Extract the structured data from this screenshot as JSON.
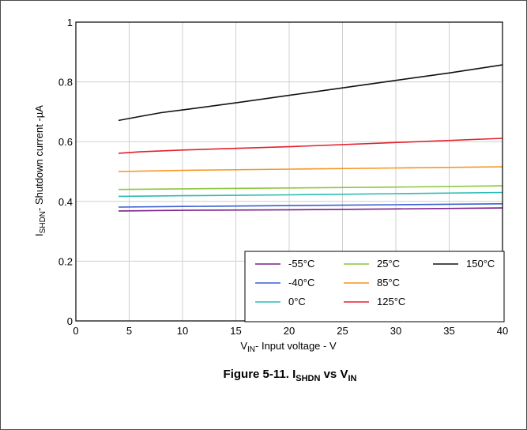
{
  "chart_data": {
    "type": "line",
    "caption": "Figure 5-11. I",
    "caption_sub1": "SHDN",
    "caption_mid": " vs V",
    "caption_sub2": "IN",
    "xlabel_main": "V",
    "xlabel_sub": "IN",
    "xlabel_rest": "- Input voltage - V",
    "ylabel_main": "I",
    "ylabel_sub": "SHDN",
    "ylabel_rest": "- Shutdown current -µA",
    "xlim": [
      0,
      40
    ],
    "ylim": [
      0,
      1
    ],
    "xticks": [
      "0",
      "5",
      "10",
      "15",
      "20",
      "25",
      "30",
      "35",
      "40"
    ],
    "yticks": [
      "0",
      "0.2",
      "0.4",
      "0.6",
      "0.8",
      "1"
    ],
    "grid": true,
    "legend_position": "bottom-right",
    "series": [
      {
        "name": "-55°C",
        "color": "#7a1f8a",
        "x": [
          4,
          10,
          20,
          30,
          40
        ],
        "y": [
          0.368,
          0.37,
          0.372,
          0.375,
          0.378
        ]
      },
      {
        "name": "-40°C",
        "color": "#3a5fd0",
        "x": [
          4,
          10,
          20,
          30,
          40
        ],
        "y": [
          0.381,
          0.383,
          0.386,
          0.389,
          0.392
        ]
      },
      {
        "name": "0°C",
        "color": "#2bbbb0",
        "x": [
          4,
          10,
          20,
          30,
          40
        ],
        "y": [
          0.417,
          0.419,
          0.422,
          0.426,
          0.43
        ]
      },
      {
        "name": "25°C",
        "color": "#8cc63f",
        "x": [
          4,
          10,
          20,
          30,
          40
        ],
        "y": [
          0.44,
          0.442,
          0.445,
          0.448,
          0.452
        ]
      },
      {
        "name": "85°C",
        "color": "#f7941d",
        "x": [
          4,
          10,
          20,
          30,
          40
        ],
        "y": [
          0.5,
          0.504,
          0.508,
          0.512,
          0.516
        ]
      },
      {
        "name": "125°C",
        "color": "#e3212b",
        "x": [
          4,
          6,
          10,
          20,
          30,
          40
        ],
        "y": [
          0.561,
          0.566,
          0.572,
          0.583,
          0.597,
          0.611
        ]
      },
      {
        "name": "150°C",
        "color": "#111111",
        "x": [
          4,
          6,
          8,
          10,
          15,
          20,
          25,
          30,
          35,
          40
        ],
        "y": [
          0.671,
          0.684,
          0.697,
          0.706,
          0.73,
          0.755,
          0.78,
          0.805,
          0.83,
          0.857
        ]
      }
    ]
  }
}
